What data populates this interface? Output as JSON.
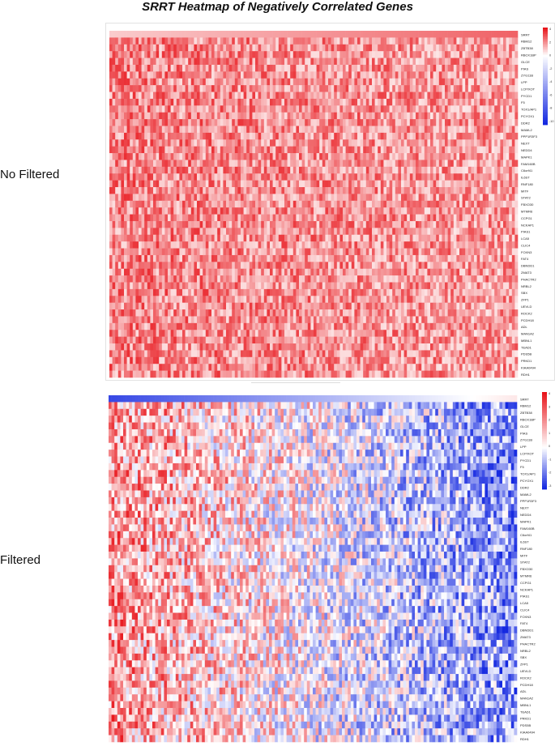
{
  "title": "SRRT Heatmap of Negatively Correlated Genes",
  "sections": {
    "top_label": "No Filtered",
    "bottom_label": "Filtered"
  },
  "colors": {
    "high": "#e8141a",
    "mid": "#ffffff",
    "low": "#1428e0"
  },
  "chart_data": [
    {
      "type": "heatmap",
      "name": "No Filtered",
      "rows": [
        "SRRT",
        "RBM12",
        "ZBTB38",
        "RBCK1BP",
        "GLCE",
        "PIAS",
        "ZYG11B",
        "LPP",
        "LCP/XOT",
        "PYCD1",
        "F5",
        "TOX1/AP1",
        "PCYOX1",
        "DDR2",
        "MAML2",
        "PPP1R3F3",
        "NEXT",
        "NEDD4",
        "MAPK1",
        "FAM160B",
        "C6orf41",
        "IL6ST",
        "RNF180",
        "MITF",
        "STAT2",
        "FBXO30",
        "MTMR6",
        "CCPG1",
        "NCKAP1",
        "PIAS1",
        "LCA5",
        "CLIC4",
        "FOXN3",
        "FAT4",
        "DBNDD1",
        "ZMAT3",
        "PHACTR2",
        "NRBL2",
        "SBX",
        "ZFP1",
        "UEVLD",
        "ROCK2",
        "PCDH18",
        "ADL",
        "MAN1A2",
        "MBNL1",
        "TEAD1",
        "PDS5B",
        "PRKD1",
        "KIAA0494",
        "RDH1"
      ],
      "colorbar_ticks": [
        "4",
        "2",
        "0",
        "-2",
        "-4",
        "-6",
        "-8",
        "-10"
      ],
      "value_range": [
        -10,
        4
      ]
    },
    {
      "type": "heatmap",
      "name": "Filtered",
      "rows": [
        "SRRT",
        "RBM12",
        "ZBTB38",
        "RBCK1BP",
        "GLCE",
        "PIAS",
        "ZYG11B",
        "LPP",
        "LCP/XOT",
        "PYCD1",
        "F5",
        "TOX1/AP1",
        "PCYOX1",
        "DDR2",
        "MAML2",
        "PPP1R3F3",
        "NEXT",
        "NEDD4",
        "MAPK1",
        "FAM160B",
        "C6orf41",
        "IL6ST",
        "RNF180",
        "MITF",
        "STAT2",
        "FBXO30",
        "MTMR6",
        "CCPG1",
        "NCKAP1",
        "PIAS1",
        "LCA5",
        "CLIC4",
        "FOXN3",
        "FAT4",
        "DBNDD1",
        "ZMAT3",
        "PHACTR2",
        "NRBL2",
        "SBX",
        "ZFP1",
        "UEVLD",
        "ROCK2",
        "PCDH18",
        "ADL",
        "MAN1A2",
        "MBNL1",
        "TEAD1",
        "PRKD1",
        "PDS5B",
        "KIAA0494",
        "RDH1"
      ],
      "colorbar_ticks": [
        "4",
        "3",
        "2",
        "1",
        "0",
        "-1",
        "-2",
        "-3"
      ],
      "value_range": [
        -3,
        4
      ]
    }
  ]
}
